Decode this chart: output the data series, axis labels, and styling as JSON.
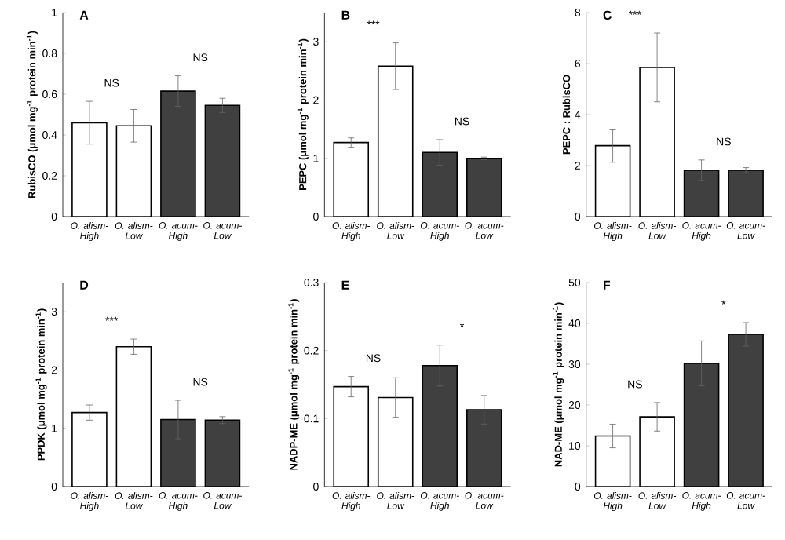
{
  "chart_data": [
    {
      "type": "bar",
      "title": "A",
      "ylabel": "RubisCO (μmol mg$^{-1}$ protein min$^{-1}$)",
      "categories": [
        "O. alism-High",
        "O. alism-Low",
        "O. acum-High",
        "O. acum-Low"
      ],
      "values": [
        0.46,
        0.445,
        0.615,
        0.545
      ],
      "errors": [
        0.105,
        0.08,
        0.075,
        0.035
      ],
      "colors": [
        "#ffffff",
        "#ffffff",
        "#404040",
        "#404040"
      ],
      "ylim": [
        0,
        1
      ],
      "yticks": [
        0,
        0.2,
        0.4,
        0.6,
        0.8,
        1
      ],
      "annotations": [
        "NS",
        "NS"
      ]
    },
    {
      "type": "bar",
      "title": "B",
      "ylabel": "PEPC (μmol mg$^{-1}$ protein min$^{-1}$)",
      "categories": [
        "O. alism-High",
        "O. alism-Low",
        "O. acum-High",
        "O. acum-Low"
      ],
      "values": [
        1.27,
        2.58,
        1.1,
        1.0
      ],
      "errors": [
        0.08,
        0.4,
        0.22,
        0.02
      ],
      "colors": [
        "#ffffff",
        "#ffffff",
        "#404040",
        "#404040"
      ],
      "ylim": [
        0,
        3.5
      ],
      "yticks": [
        0,
        1,
        2,
        3
      ],
      "annotations": [
        "***",
        "NS"
      ]
    },
    {
      "type": "bar",
      "title": "C",
      "ylabel": "PEPC : RubisCO",
      "categories": [
        "O. alism-High",
        "O. alism-Low",
        "O. acum-High",
        "O. acum-Low"
      ],
      "values": [
        2.78,
        5.85,
        1.82,
        1.82
      ],
      "errors": [
        0.65,
        1.35,
        0.4,
        0.1
      ],
      "colors": [
        "#ffffff",
        "#ffffff",
        "#404040",
        "#404040"
      ],
      "ylim": [
        0,
        8
      ],
      "yticks": [
        0,
        2,
        4,
        6,
        8
      ],
      "annotations": [
        "***",
        "NS"
      ]
    },
    {
      "type": "bar",
      "title": "D",
      "ylabel": "PPDK (μmol mg$^{-1}$ protein min$^{-1}$)",
      "categories": [
        "O. alism-High",
        "O. alism-Low",
        "O. acum-High",
        "O. acum-Low"
      ],
      "values": [
        1.27,
        2.4,
        1.15,
        1.14
      ],
      "errors": [
        0.13,
        0.13,
        0.33,
        0.06
      ],
      "colors": [
        "#ffffff",
        "#ffffff",
        "#404040",
        "#404040"
      ],
      "ylim": [
        0,
        3.5
      ],
      "yticks": [
        0,
        1,
        2,
        3
      ],
      "annotations": [
        "***",
        "NS"
      ]
    },
    {
      "type": "bar",
      "title": "E",
      "ylabel": "NADP-ME (μmol mg$^{-1}$ protein min$^{-1}$)",
      "categories": [
        "O. alism-High",
        "O. alism-Low",
        "O. acum-High",
        "O. acum-Low"
      ],
      "values": [
        0.147,
        0.131,
        0.178,
        0.113
      ],
      "errors": [
        0.015,
        0.029,
        0.03,
        0.021
      ],
      "colors": [
        "#ffffff",
        "#ffffff",
        "#404040",
        "#404040"
      ],
      "ylim": [
        0,
        0.3
      ],
      "yticks": [
        0,
        0.1,
        0.2,
        0.3
      ],
      "annotations": [
        "NS",
        "*"
      ]
    },
    {
      "type": "bar",
      "title": "F",
      "ylabel": "NAD-ME (μmol mg$^{-1}$ protein min$^{-1}$)",
      "categories": [
        "O. alism-High",
        "O. alism-Low",
        "O. acum-High",
        "O. acum-Low"
      ],
      "values": [
        12.4,
        17.1,
        30.2,
        37.3
      ],
      "errors": [
        2.9,
        3.5,
        5.5,
        2.9
      ],
      "colors": [
        "#ffffff",
        "#ffffff",
        "#404040",
        "#404040"
      ],
      "ylim": [
        0,
        50
      ],
      "yticks": [
        0,
        10,
        20,
        30,
        40,
        50
      ],
      "annotations": [
        "NS",
        "*"
      ]
    }
  ]
}
